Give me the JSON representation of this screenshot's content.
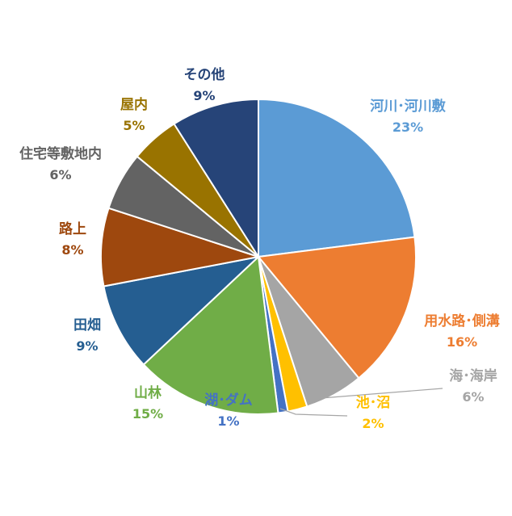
{
  "chart_data": {
    "type": "pie",
    "title": "",
    "legend": "none",
    "slices": [
      {
        "label": "河川･河川敷",
        "value": 23,
        "value_label": "23%",
        "color": "#5B9BD5",
        "label_color": "#5B9BD5"
      },
      {
        "label": "用水路･側溝",
        "value": 16,
        "value_label": "16%",
        "color": "#ED7D31",
        "label_color": "#ED7D31"
      },
      {
        "label": "海･海岸",
        "value": 6,
        "value_label": "6%",
        "color": "#A5A5A5",
        "label_color": "#A5A5A5"
      },
      {
        "label": "池･沼",
        "value": 2,
        "value_label": "2%",
        "color": "#FFC000",
        "label_color": "#FFC000"
      },
      {
        "label": "湖･ダム",
        "value": 1,
        "value_label": "1%",
        "color": "#4472C4",
        "label_color": "#4472C4"
      },
      {
        "label": "山林",
        "value": 15,
        "value_label": "15%",
        "color": "#70AD47",
        "label_color": "#70AD47"
      },
      {
        "label": "田畑",
        "value": 9,
        "value_label": "9%",
        "color": "#255E91",
        "label_color": "#255E91"
      },
      {
        "label": "路上",
        "value": 8,
        "value_label": "8%",
        "color": "#9E480E",
        "label_color": "#9E480E"
      },
      {
        "label": "住宅等敷地内",
        "value": 6,
        "value_label": "6%",
        "color": "#636363",
        "label_color": "#636363"
      },
      {
        "label": "屋内",
        "value": 5,
        "value_label": "5%",
        "color": "#997300",
        "label_color": "#997300"
      },
      {
        "label": "その他",
        "value": 9,
        "value_label": "9%",
        "color": "#264478",
        "label_color": "#264478"
      }
    ]
  }
}
